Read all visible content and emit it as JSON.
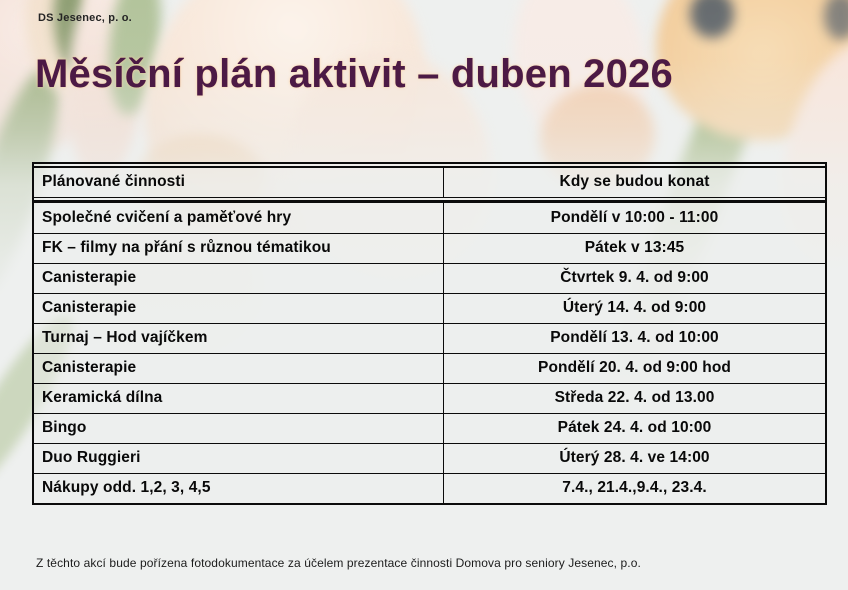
{
  "page": {
    "org_label": "DS Jesenec, p. o.",
    "title": "Měsíční plán aktivit – duben 2026",
    "footer_note": "Z těchto akcí bude pořízena fotodokumentace za účelem prezentace činnosti Domova pro seniory Jesenec, p.o.",
    "colors": {
      "title_text": "#4c1a45",
      "table_border": "#0b0b0b",
      "background": "#eef0ef",
      "photo_peach": "#f3cf9f",
      "photo_green": "#a9bd85"
    }
  },
  "table": {
    "headers": [
      "Plánované činnosti",
      "Kdy se budou konat"
    ],
    "rows": [
      [
        "Společné cvičení a paměťové hry",
        "Pondělí v 10:00 - 11:00"
      ],
      [
        "FK – filmy na přání s různou tématikou",
        "Pátek v 13:45"
      ],
      [
        "Canisterapie",
        "Čtvrtek 9. 4. od 9:00"
      ],
      [
        "Canisterapie",
        "Úterý 14. 4. od 9:00"
      ],
      [
        "Turnaj – Hod vajíčkem",
        "Pondělí 13. 4. od 10:00"
      ],
      [
        "Canisterapie",
        "Pondělí 20. 4. od 9:00 hod"
      ],
      [
        "Keramická dílna",
        "Středa 22. 4. od 13.00"
      ],
      [
        "Bingo",
        "Pátek 24. 4. od 10:00"
      ],
      [
        "Duo Ruggieri",
        "Úterý 28. 4. ve 14:00"
      ],
      [
        "Nákupy odd. 1,2, 3, 4,5",
        "7.4., 21.4.,9.4., 23.4."
      ]
    ]
  }
}
